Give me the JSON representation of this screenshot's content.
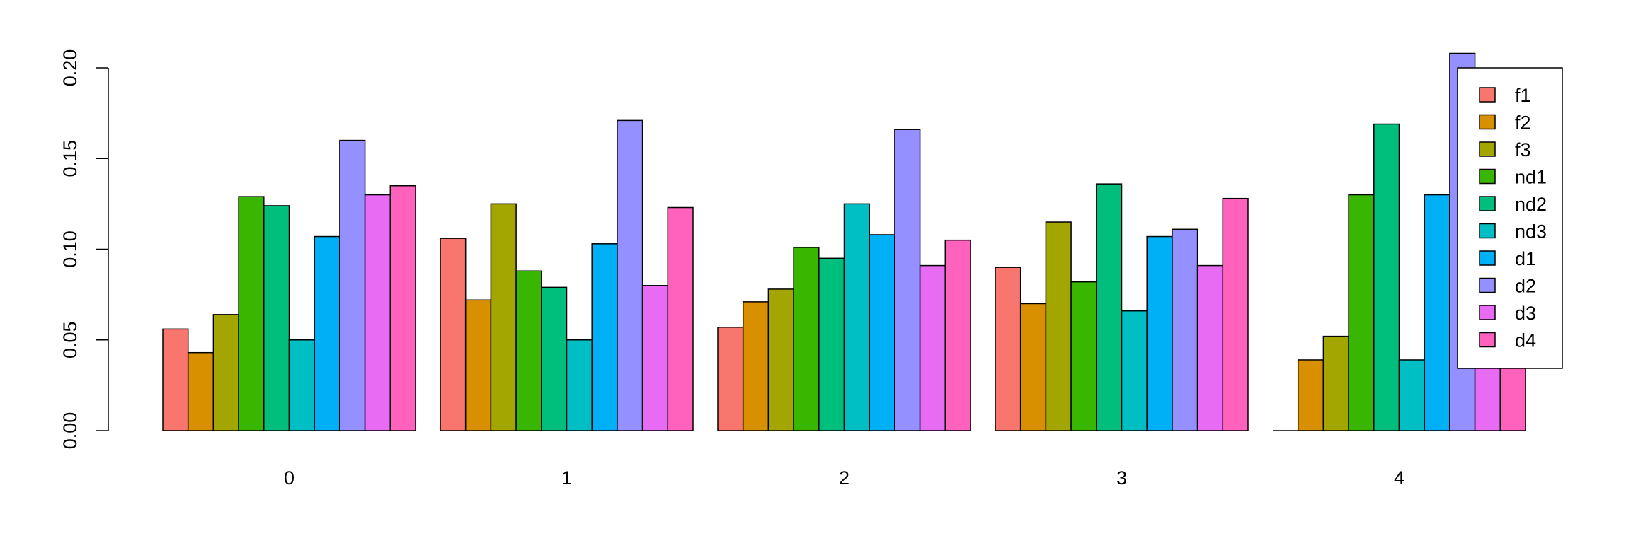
{
  "chart_data": {
    "type": "bar",
    "categories": [
      "0",
      "1",
      "2",
      "3",
      "4"
    ],
    "series": [
      {
        "name": "f1",
        "color": "#F8766D",
        "values": [
          0.056,
          0.106,
          0.057,
          0.09,
          0.0
        ]
      },
      {
        "name": "f2",
        "color": "#D89000",
        "values": [
          0.043,
          0.072,
          0.071,
          0.07,
          0.039
        ]
      },
      {
        "name": "f3",
        "color": "#A3A500",
        "values": [
          0.064,
          0.125,
          0.078,
          0.115,
          0.052
        ]
      },
      {
        "name": "nd1",
        "color": "#39B600",
        "values": [
          0.129,
          0.088,
          0.101,
          0.082,
          0.13
        ]
      },
      {
        "name": "nd2",
        "color": "#00BF7D",
        "values": [
          0.124,
          0.079,
          0.095,
          0.136,
          0.169
        ]
      },
      {
        "name": "nd3",
        "color": "#00BFC4",
        "values": [
          0.05,
          0.05,
          0.125,
          0.066,
          0.039
        ]
      },
      {
        "name": "d1",
        "color": "#00B0F6",
        "values": [
          0.107,
          0.103,
          0.108,
          0.107,
          0.13
        ]
      },
      {
        "name": "d2",
        "color": "#9590FF",
        "values": [
          0.16,
          0.171,
          0.166,
          0.111,
          0.208
        ]
      },
      {
        "name": "d3",
        "color": "#E76BF3",
        "values": [
          0.13,
          0.08,
          0.091,
          0.091,
          0.07
        ]
      },
      {
        "name": "d4",
        "color": "#FF62BC",
        "values": [
          0.135,
          0.123,
          0.105,
          0.128,
          0.06
        ]
      }
    ],
    "yticks": [
      "0.00",
      "0.05",
      "0.10",
      "0.15",
      "0.20"
    ],
    "ylim": [
      0,
      0.2
    ],
    "title": "",
    "xlabel": "",
    "ylabel": "",
    "grid": false,
    "legend_position": "top-right"
  }
}
